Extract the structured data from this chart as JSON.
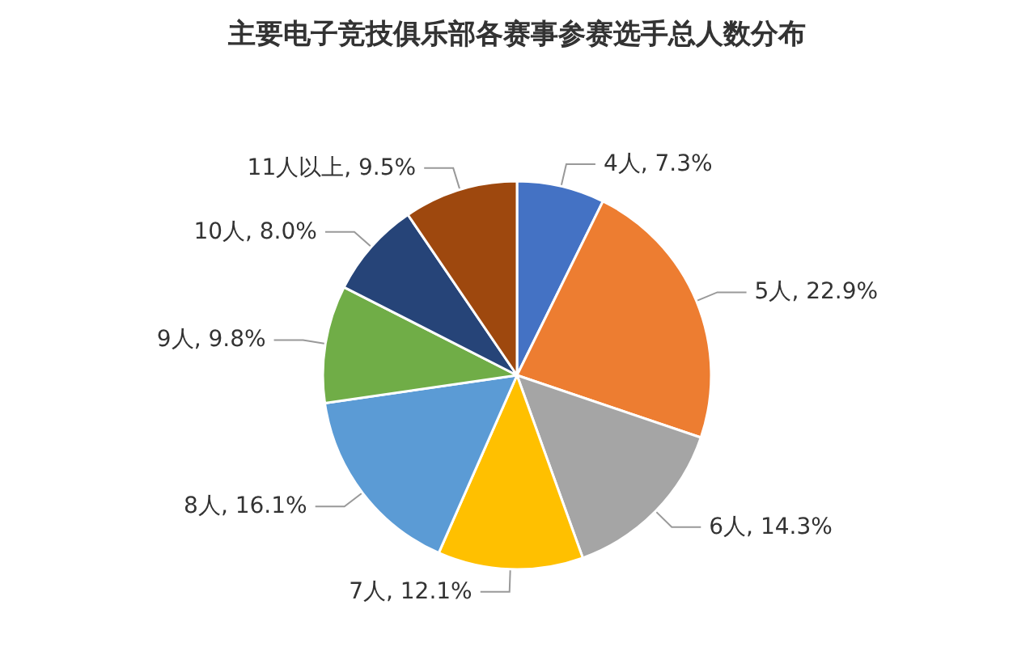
{
  "chart_data": {
    "type": "pie",
    "title": "主要电子竞技俱乐部各赛事参赛选手总人数分布",
    "categories": [
      "4人",
      "5人",
      "6人",
      "7人",
      "8人",
      "9人",
      "10人",
      "11人以上"
    ],
    "values": [
      7.3,
      22.9,
      14.3,
      12.1,
      16.1,
      9.8,
      8.0,
      9.5
    ],
    "value_labels": [
      "7.3%",
      "22.9%",
      "14.3%",
      "12.1%",
      "16.1%",
      "9.8%",
      "8.0%",
      "9.5%"
    ],
    "colors": [
      "#4472c4",
      "#ed7d31",
      "#a5a5a5",
      "#ffc000",
      "#5b9bd5",
      "#70ad47",
      "#264478",
      "#9e480e"
    ],
    "legend": false
  }
}
